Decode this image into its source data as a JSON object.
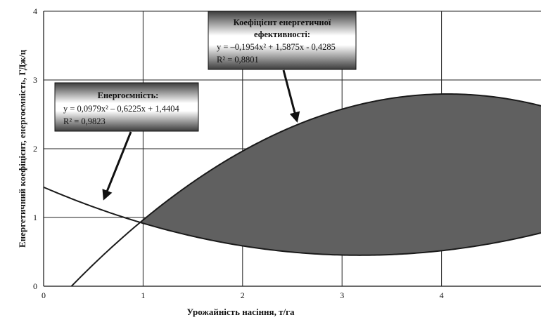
{
  "chart_data": {
    "type": "line",
    "title": "",
    "xlabel": "Урожайність насіння, т/га",
    "ylabel": "Енергетичний коефіцієнт, енергоємність, ГДж/ц",
    "xlim": [
      0,
      5
    ],
    "ylim": [
      0,
      4
    ],
    "x_ticks": [
      "0",
      "1",
      "2",
      "3",
      "4"
    ],
    "y_ticks": [
      "0",
      "1",
      "2",
      "3",
      "4"
    ],
    "grid": true,
    "legend": "none",
    "fill_between_curves": true,
    "colors": {
      "fill": "#606060",
      "line": "#1a1a1a",
      "grid": "#222222",
      "box_dark": "#3c3c3c",
      "box_light": "#ffffff"
    },
    "series": [
      {
        "name": "Енергоємність",
        "equation": {
          "a": 0.0979,
          "b": -0.6225,
          "c": 1.4404
        },
        "x_range": [
          0,
          5
        ],
        "annotation": {
          "title": "Енергоємність:",
          "lines": [
            "y = 0,0979x² – 0,6225x + 1,4404",
            "R² = 0,9823"
          ]
        }
      },
      {
        "name": "Коефіцієнт енергетичної ефективності",
        "equation": {
          "a": -0.1954,
          "b": 1.5875,
          "c": -0.4285
        },
        "x_range": [
          0.28,
          5
        ],
        "annotation": {
          "title_lines": [
            "Коефіцієнт енергетичної",
            "ефективності:"
          ],
          "lines": [
            "y = –0,1954x² + 1,5875x - 0,4285",
            "R² = 0,8801"
          ]
        }
      }
    ]
  }
}
